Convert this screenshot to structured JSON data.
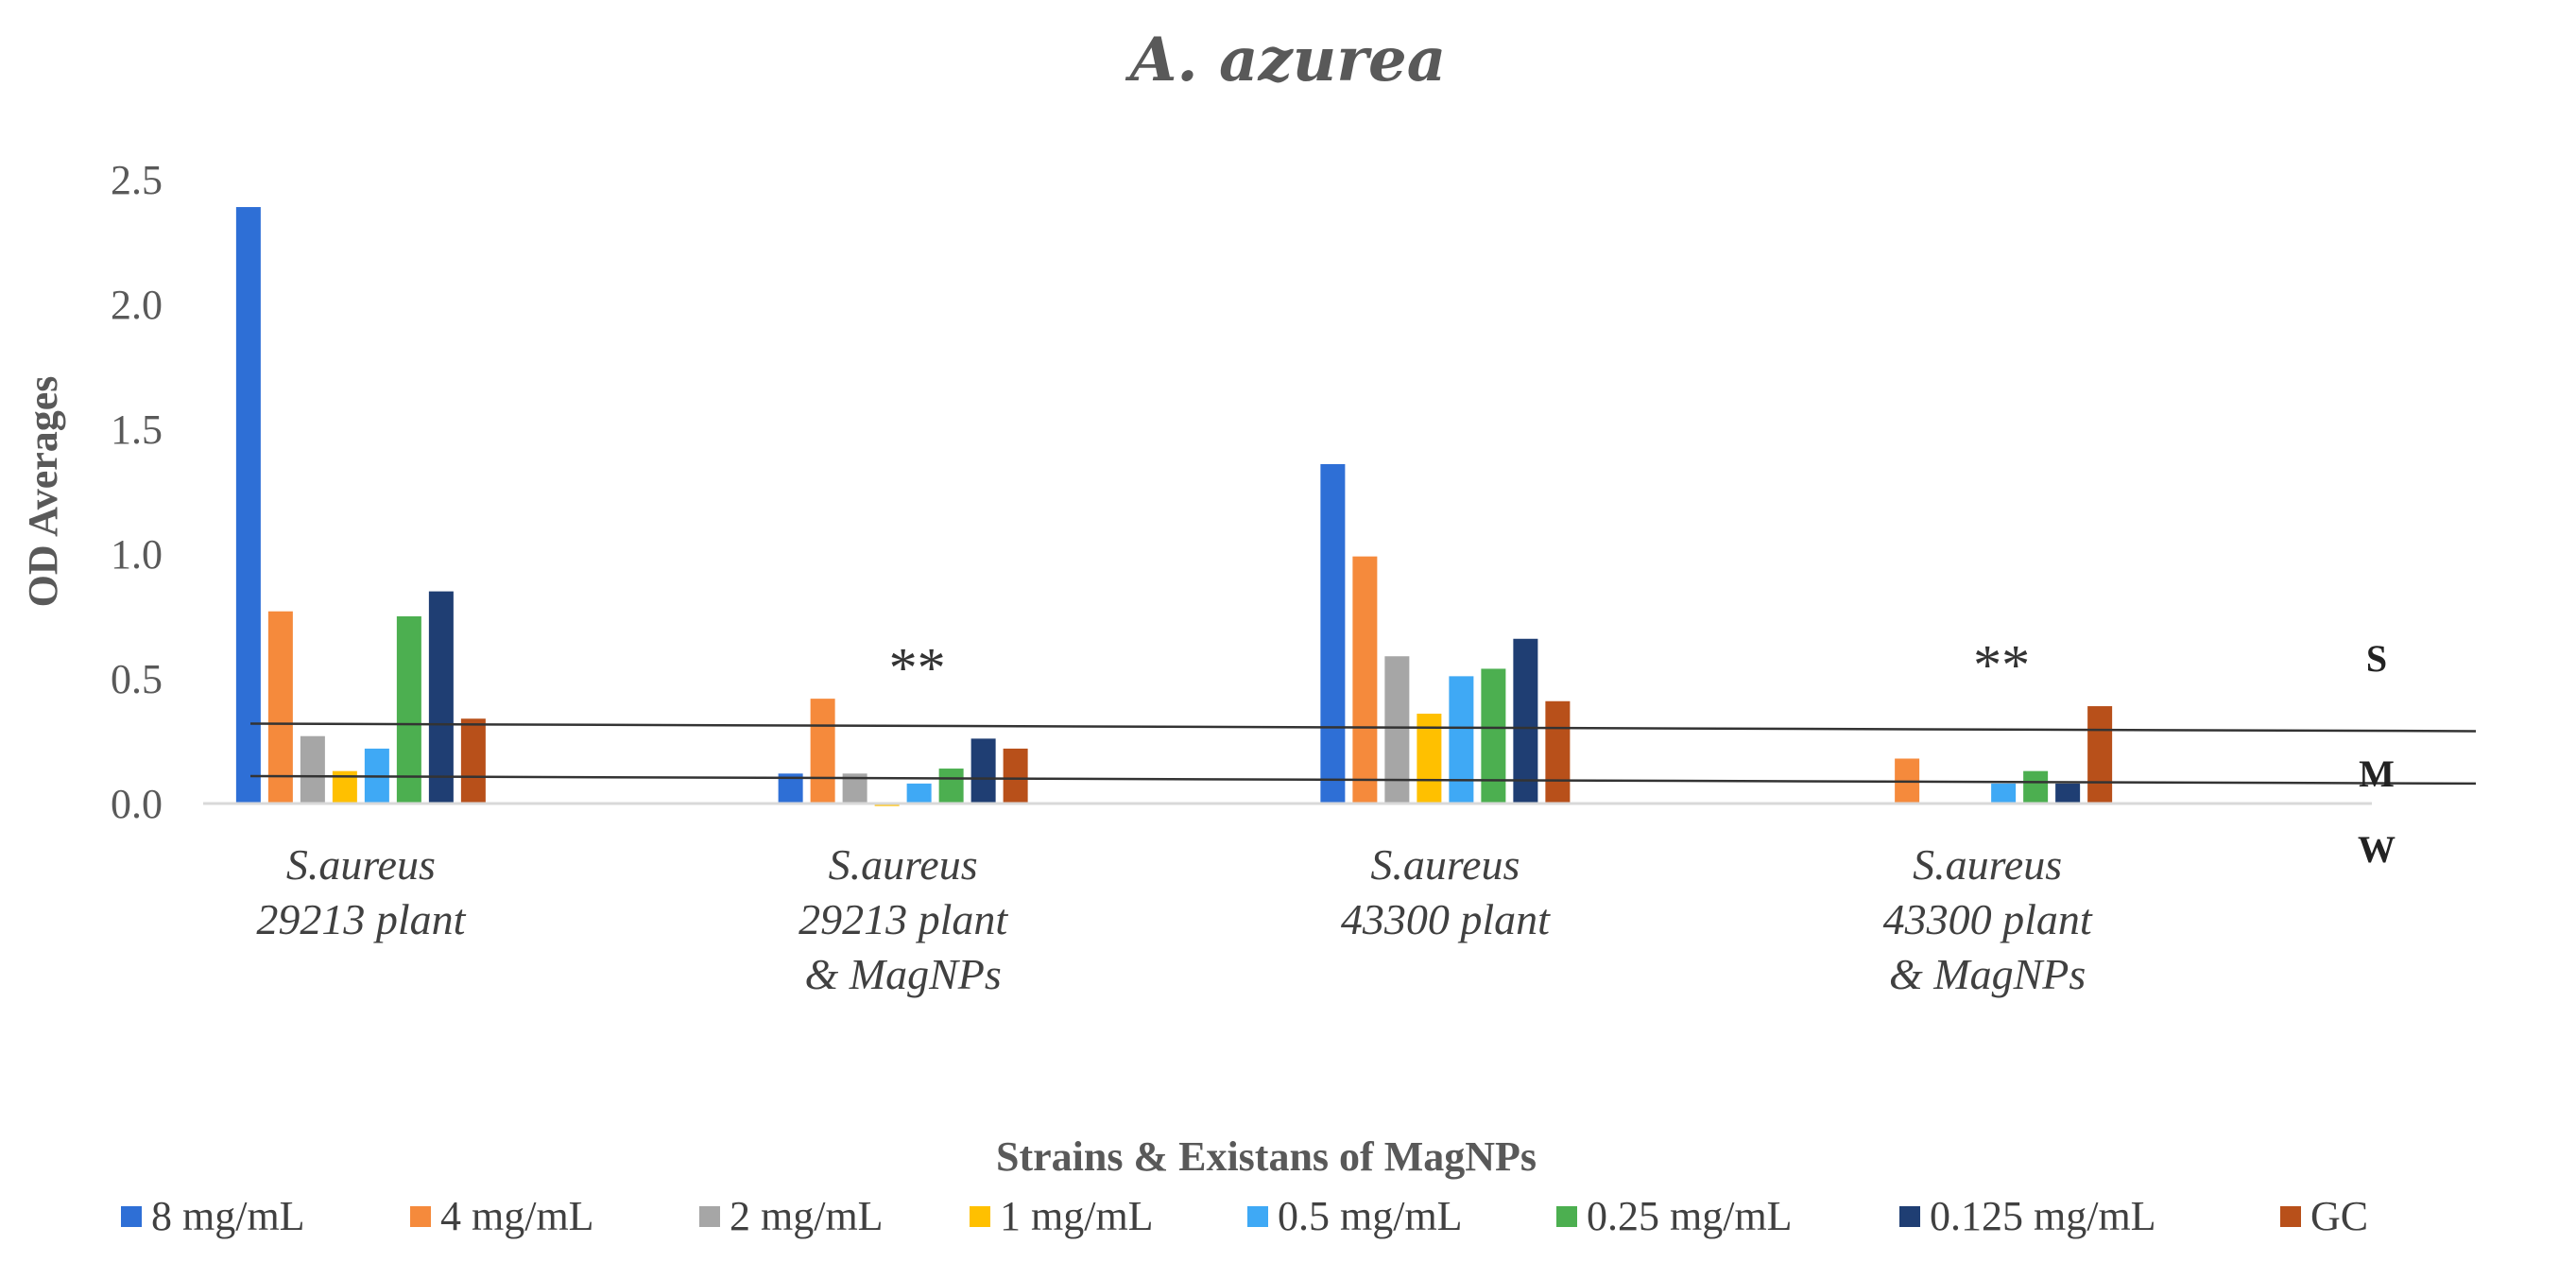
{
  "chart_data": {
    "type": "bar",
    "title": "A. azurea",
    "xlabel": "Strains & Existans of MagNPs",
    "ylabel": "OD Averages",
    "ylim": [
      0,
      2.5
    ],
    "yticks": [
      "0.0",
      "0.5",
      "1.0",
      "1.5",
      "2.0",
      "2.5"
    ],
    "categories": [
      [
        "S.aureus",
        "29213 plant"
      ],
      [
        "S.aureus",
        "29213 plant",
        "& MagNPs"
      ],
      [
        "S.aureus",
        "43300 plant"
      ],
      [
        "S.aureus",
        "43300 plant",
        "& MagNPs"
      ]
    ],
    "series": [
      {
        "name": "8 mg/mL",
        "color": "#2E6FD6",
        "values": [
          2.39,
          0.12,
          1.36,
          0
        ]
      },
      {
        "name": "4 mg/mL",
        "color": "#F58A3C",
        "values": [
          0.77,
          0.42,
          0.99,
          0.18
        ]
      },
      {
        "name": "2 mg/mL",
        "color": "#A6A6A6",
        "values": [
          0.27,
          0.12,
          0.59,
          0
        ]
      },
      {
        "name": "1 mg/mL",
        "color": "#FFC000",
        "values": [
          0.13,
          -0.01,
          0.36,
          0
        ]
      },
      {
        "name": "0.5 mg/mL",
        "color": "#3FA9F5",
        "values": [
          0.22,
          0.08,
          0.51,
          0.08
        ]
      },
      {
        "name": "0.25 mg/mL",
        "color": "#4CAF50",
        "values": [
          0.75,
          0.14,
          0.54,
          0.13
        ]
      },
      {
        "name": "0.125 mg/mL",
        "color": "#1F3E73",
        "values": [
          0.85,
          0.26,
          0.66,
          0.08
        ]
      },
      {
        "name": "GC",
        "color": "#B8501A",
        "values": [
          0.34,
          0.22,
          0.41,
          0.39
        ]
      }
    ],
    "annotations": [
      {
        "text": "**",
        "category_index": 1,
        "y": 0.62
      },
      {
        "text": "**",
        "category_index": 3,
        "y": 0.63
      }
    ],
    "cutoffs": [
      {
        "label": "S",
        "y_start": 0.32,
        "y_end": 0.29
      },
      {
        "label": "M",
        "y_start": 0.11,
        "y_end": 0.08
      }
    ],
    "zone_labels": [
      "S",
      "M",
      "W"
    ],
    "legend_position": "bottom"
  }
}
